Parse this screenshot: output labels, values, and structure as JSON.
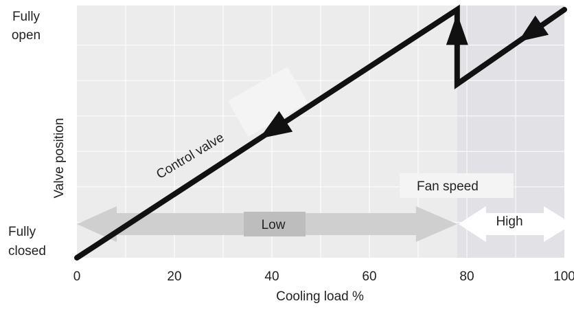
{
  "chart_data": {
    "type": "line",
    "xlabel": "Cooling load %",
    "ylabel": "Valve position",
    "x_ticks": [
      "0",
      "20",
      "40",
      "60",
      "80",
      "100"
    ],
    "xlim": [
      0,
      100
    ],
    "ylim": [
      0,
      100
    ],
    "y_top_label": [
      "Fully",
      "open"
    ],
    "y_bottom_label": [
      "Fully",
      "closed"
    ],
    "grid": true,
    "series": [
      {
        "name": "Control valve",
        "x": [
          0,
          78,
          78,
          100
        ],
        "y": [
          0,
          100,
          70,
          100
        ]
      }
    ],
    "fan_speed": {
      "label": "Fan speed",
      "bands": [
        {
          "label": "Low",
          "from": 0,
          "to": 78
        },
        {
          "label": "High",
          "from": 78,
          "to": 100
        }
      ]
    },
    "colors": {
      "plot_bg": "#ececec",
      "high_region": "#e1e1e6",
      "grid": "#ffffff",
      "line": "#111111",
      "low_band": "#cfcfcf",
      "low_label_bg": "#bdbdbd",
      "high_band": "#ffffff",
      "label_box": "#f4f4f4"
    }
  }
}
